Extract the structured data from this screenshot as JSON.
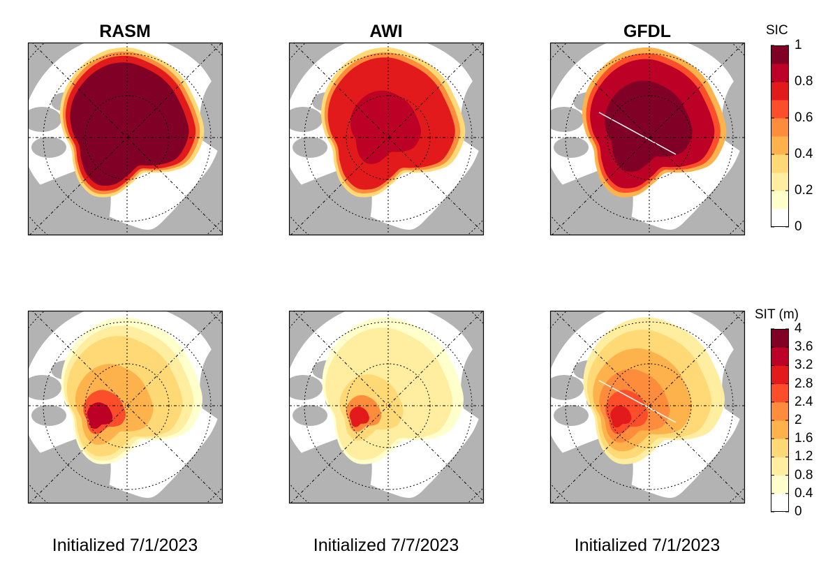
{
  "columns": [
    {
      "model": "RASM",
      "initialized": "Initialized 7/1/2023"
    },
    {
      "model": "AWI",
      "initialized": "Initialized 7/7/2023"
    },
    {
      "model": "GFDL",
      "initialized": "Initialized 7/1/2023"
    }
  ],
  "colorbars": [
    {
      "label": "SIC",
      "ticks": [
        "1",
        "0.8",
        "0.6",
        "0.4",
        "0.2",
        "0"
      ],
      "range": [
        0,
        1
      ],
      "bins": 10
    },
    {
      "label": "SIT (m)",
      "ticks": [
        "4",
        "3.6",
        "3.2",
        "2.8",
        "2.4",
        "2",
        "1.6",
        "1.2",
        "0.8",
        "0.4",
        "0"
      ],
      "range": [
        0,
        4
      ],
      "bins": 10
    }
  ],
  "colormap": [
    "#ffffff",
    "#ffffcc",
    "#ffeda0",
    "#fed976",
    "#feb24c",
    "#fd8d3c",
    "#fc4e2a",
    "#e31a1c",
    "#bd0026",
    "#800026"
  ],
  "land_color": "#b3b3b3",
  "ocean_color": "#ffffff"
}
